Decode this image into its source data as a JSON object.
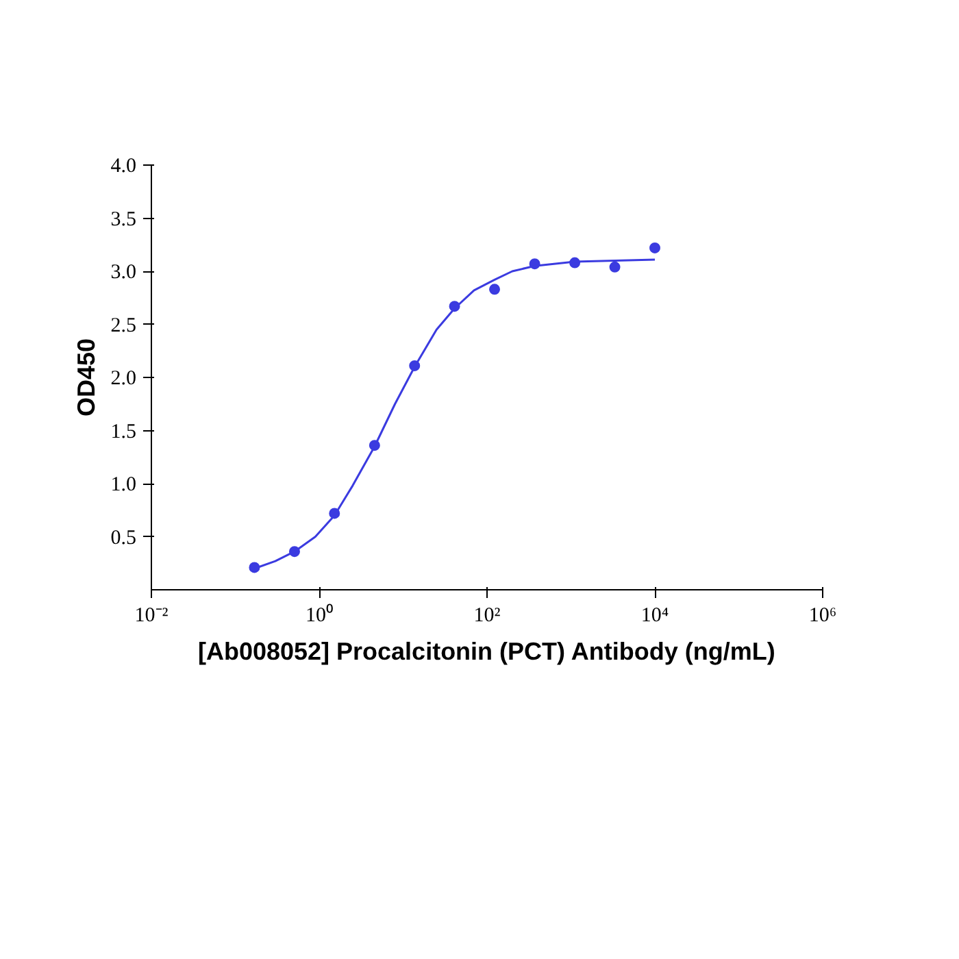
{
  "chart_data": {
    "type": "scatter",
    "xlabel": "[Ab008052] Procalcitonin (PCT) Antibody (ng/mL)",
    "ylabel": "OD450",
    "log": "x",
    "grid": false,
    "marker": "circle",
    "xlim": [
      0.01,
      1000000
    ],
    "ylim": [
      0,
      4.0
    ],
    "xticks": [
      {
        "value": 0.01,
        "label": "10⁻²"
      },
      {
        "value": 1,
        "label": "10⁰"
      },
      {
        "value": 100,
        "label": "10²"
      },
      {
        "value": 10000,
        "label": "10⁴"
      },
      {
        "value": 1000000,
        "label": "10⁶"
      }
    ],
    "yticks": [
      {
        "value": 0.5,
        "label": "0.5"
      },
      {
        "value": 1,
        "label": "1.0"
      },
      {
        "value": 1.5,
        "label": "1.5"
      },
      {
        "value": 2,
        "label": "2.0"
      },
      {
        "value": 2.5,
        "label": "2.5"
      },
      {
        "value": 3,
        "label": "3.0"
      },
      {
        "value": 3.5,
        "label": "3.5"
      },
      {
        "value": 4,
        "label": "4.0"
      }
    ],
    "series": [
      {
        "color": "#3b3be0",
        "x": [
          0.169,
          0.508,
          1.52,
          4.57,
          13.7,
          41,
          123,
          370,
          1111,
          3333,
          10000
        ],
        "values": [
          0.21,
          0.36,
          0.72,
          1.36,
          2.11,
          2.67,
          2.83,
          3.07,
          3.08,
          3.04,
          3.22
        ]
      },
      {
        "type": "line",
        "color": "#3b3be0",
        "line_style": "solid",
        "marker": "none",
        "x": [
          0.169,
          0.3,
          0.508,
          0.9,
          1.52,
          2.5,
          4.57,
          8,
          13.7,
          25,
          41,
          70,
          123,
          200,
          370,
          1111,
          3333,
          10000
        ],
        "values": [
          0.2,
          0.27,
          0.36,
          0.5,
          0.7,
          0.98,
          1.35,
          1.75,
          2.1,
          2.45,
          2.65,
          2.82,
          2.92,
          3.0,
          3.05,
          3.09,
          3.1,
          3.11
        ]
      }
    ]
  }
}
